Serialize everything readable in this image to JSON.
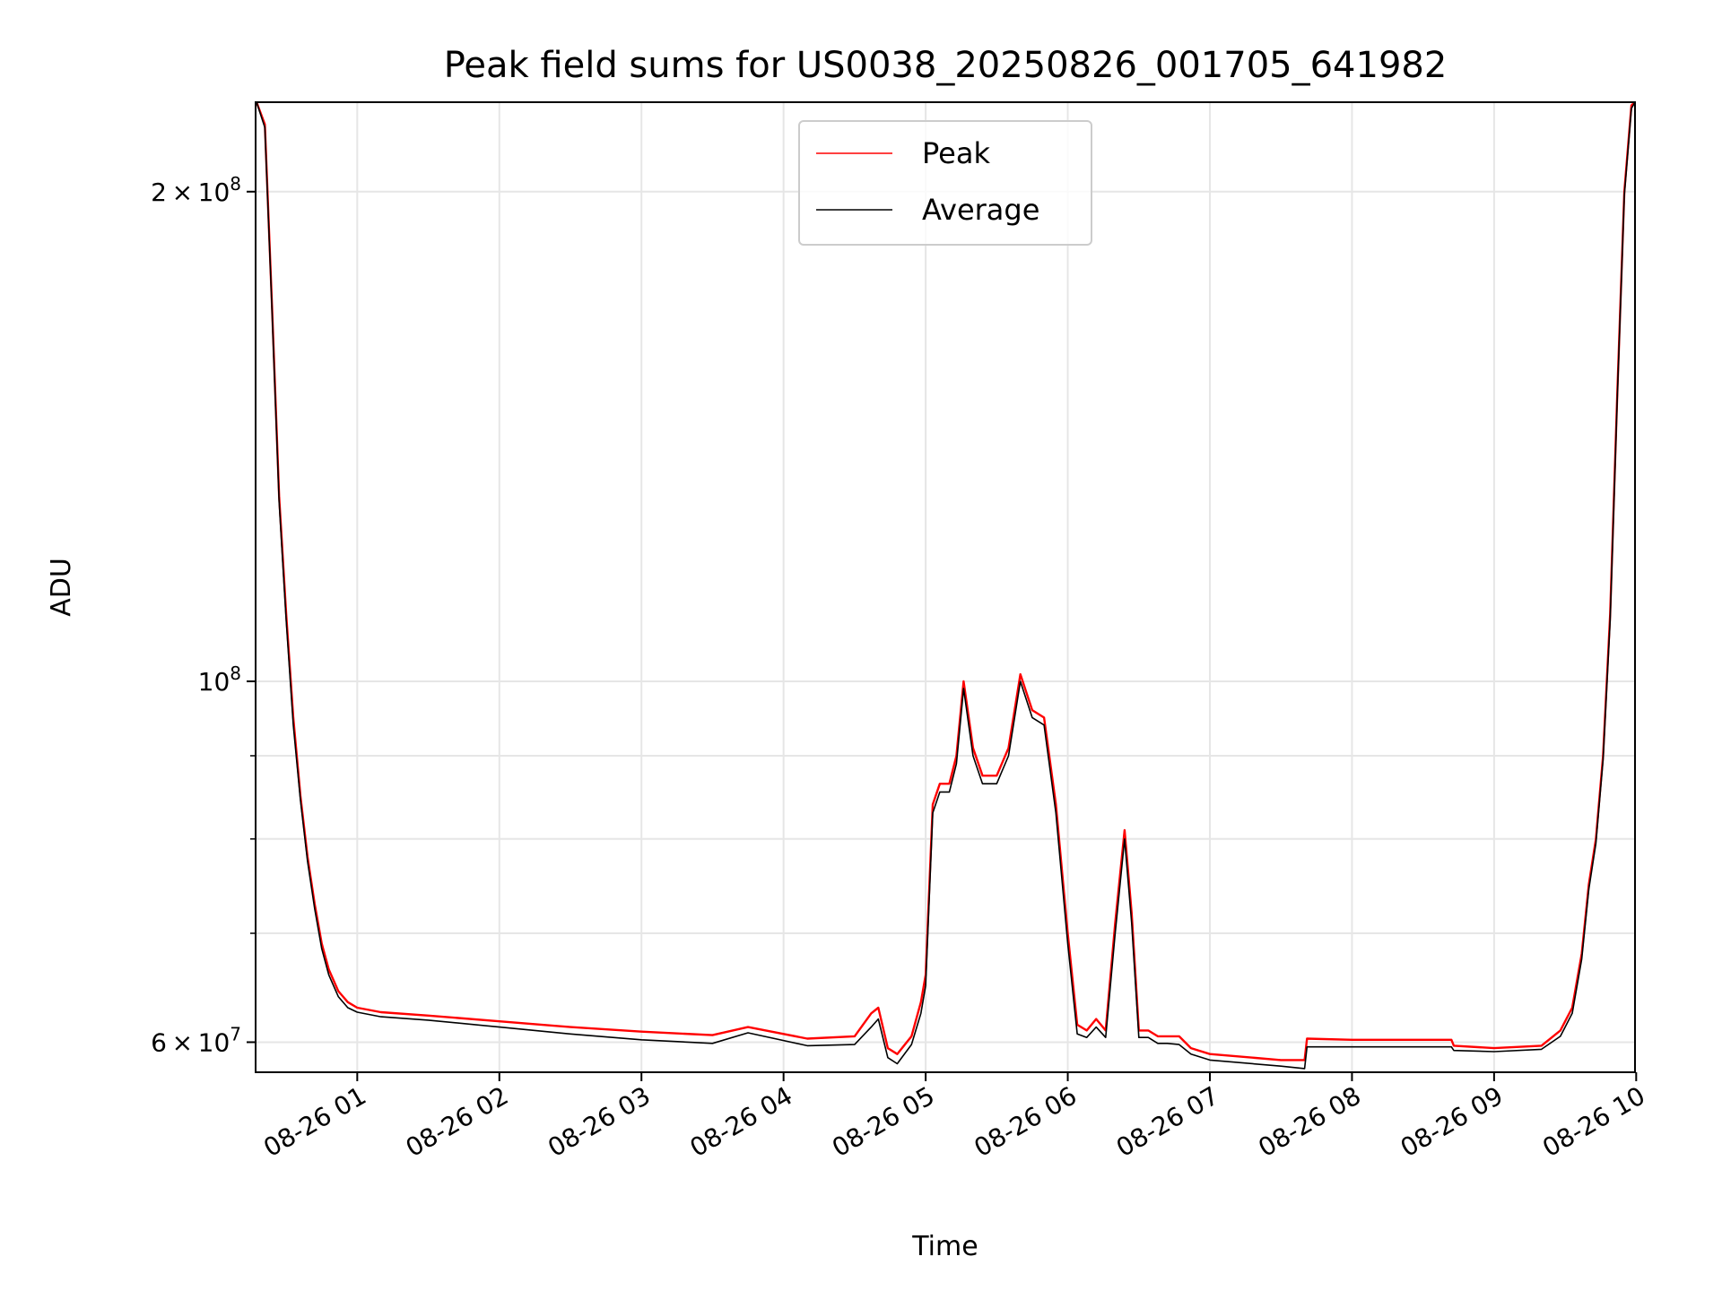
{
  "chart_data": {
    "type": "line",
    "title": "Peak field sums for US0038_20250826_001705_641982",
    "xlabel": "Time",
    "ylabel": "ADU",
    "y_scale": "log",
    "ylim": [
      57500000,
      227000000
    ],
    "xlim": [
      "2025-08-26 00:17:05",
      "2025-08-26 09:59:30"
    ],
    "x_tick_labels": [
      "08-26 01",
      "08-26 02",
      "08-26 03",
      "08-26 04",
      "08-26 05",
      "08-26 06",
      "08-26 07",
      "08-26 08",
      "08-26 09",
      "08-26 10"
    ],
    "x_ticks": [
      "2025-08-26 01:00",
      "2025-08-26 02:00",
      "2025-08-26 03:00",
      "2025-08-26 04:00",
      "2025-08-26 05:00",
      "2025-08-26 06:00",
      "2025-08-26 07:00",
      "2025-08-26 08:00",
      "2025-08-26 09:00",
      "2025-08-26 10:00"
    ],
    "y_major_ticks": [
      {
        "value": 60000000,
        "mantissa": "6",
        "exponent": "7"
      },
      {
        "value": 100000000,
        "mantissa": "",
        "exponent": "8"
      },
      {
        "value": 200000000,
        "mantissa": "2",
        "exponent": "8"
      }
    ],
    "y_minor_ticks": [
      70000000,
      80000000,
      90000000
    ],
    "grid": true,
    "legend_position": "top-center",
    "series": [
      {
        "name": "Peak",
        "color": "#ff0000",
        "x": [
          "2025-08-26 00:17:30",
          "2025-08-26 00:21:00",
          "2025-08-26 00:24:00",
          "2025-08-26 00:27:00",
          "2025-08-26 00:30:00",
          "2025-08-26 00:33:00",
          "2025-08-26 00:36:00",
          "2025-08-26 00:39:00",
          "2025-08-26 00:42:00",
          "2025-08-26 00:45:00",
          "2025-08-26 00:48:00",
          "2025-08-26 00:52:00",
          "2025-08-26 00:56:00",
          "2025-08-26 01:00:00",
          "2025-08-26 01:10:00",
          "2025-08-26 01:30:00",
          "2025-08-26 02:00:00",
          "2025-08-26 02:30:00",
          "2025-08-26 03:00:00",
          "2025-08-26 03:30:00",
          "2025-08-26 03:45:00",
          "2025-08-26 04:10:00",
          "2025-08-26 04:30:00",
          "2025-08-26 04:37:00",
          "2025-08-26 04:40:00",
          "2025-08-26 04:44:00",
          "2025-08-26 04:48:00",
          "2025-08-26 04:54:00",
          "2025-08-26 04:58:00",
          "2025-08-26 05:00:00",
          "2025-08-26 05:03:00",
          "2025-08-26 05:06:00",
          "2025-08-26 05:10:00",
          "2025-08-26 05:13:00",
          "2025-08-26 05:16:00",
          "2025-08-26 05:20:00",
          "2025-08-26 05:24:00",
          "2025-08-26 05:30:00",
          "2025-08-26 05:35:00",
          "2025-08-26 05:40:00",
          "2025-08-26 05:45:00",
          "2025-08-26 05:50:00",
          "2025-08-26 05:55:00",
          "2025-08-26 06:00:00",
          "2025-08-26 06:04:00",
          "2025-08-26 06:08:00",
          "2025-08-26 06:12:00",
          "2025-08-26 06:16:00",
          "2025-08-26 06:20:00",
          "2025-08-26 06:24:00",
          "2025-08-26 06:27:00",
          "2025-08-26 06:30:00",
          "2025-08-26 06:34:00",
          "2025-08-26 06:38:00",
          "2025-08-26 06:42:00",
          "2025-08-26 06:47:00",
          "2025-08-26 06:52:00",
          "2025-08-26 07:00:00",
          "2025-08-26 07:30:00",
          "2025-08-26 07:40:00",
          "2025-08-26 07:41:00",
          "2025-08-26 08:00:00",
          "2025-08-26 08:30:00",
          "2025-08-26 08:42:00",
          "2025-08-26 08:43:00",
          "2025-08-26 09:00:00",
          "2025-08-26 09:20:00",
          "2025-08-26 09:28:00",
          "2025-08-26 09:33:00",
          "2025-08-26 09:37:00",
          "2025-08-26 09:40:00",
          "2025-08-26 09:43:00",
          "2025-08-26 09:46:00",
          "2025-08-26 09:49:00",
          "2025-08-26 09:52:00",
          "2025-08-26 09:55:00",
          "2025-08-26 09:58:00",
          "2025-08-26 09:59:30"
        ],
        "values": [
          227000000,
          220000000,
          170000000,
          130000000,
          110000000,
          95000000,
          85000000,
          78000000,
          73000000,
          69000000,
          66500000,
          64500000,
          63500000,
          63000000,
          62600000,
          62300000,
          61800000,
          61300000,
          60900000,
          60600000,
          61300000,
          60300000,
          60500000,
          62500000,
          63000000,
          59500000,
          59000000,
          60500000,
          63500000,
          66000000,
          84000000,
          86500000,
          86500000,
          90000000,
          100000000,
          91000000,
          87500000,
          87500000,
          91000000,
          101000000,
          96000000,
          95000000,
          84000000,
          70000000,
          61500000,
          61000000,
          62000000,
          61000000,
          71000000,
          81000000,
          72000000,
          61000000,
          61000000,
          60500000,
          60500000,
          60500000,
          59500000,
          59000000,
          58500000,
          58500000,
          60300000,
          60200000,
          60200000,
          60200000,
          59700000,
          59500000,
          59700000,
          61000000,
          63000000,
          68000000,
          75000000,
          80000000,
          90000000,
          110000000,
          150000000,
          200000000,
          226000000,
          227000000
        ]
      },
      {
        "name": "Average",
        "color": "#000000",
        "x": [
          "2025-08-26 00:17:30",
          "2025-08-26 00:21:00",
          "2025-08-26 00:24:00",
          "2025-08-26 00:27:00",
          "2025-08-26 00:30:00",
          "2025-08-26 00:33:00",
          "2025-08-26 00:36:00",
          "2025-08-26 00:39:00",
          "2025-08-26 00:42:00",
          "2025-08-26 00:45:00",
          "2025-08-26 00:48:00",
          "2025-08-26 00:52:00",
          "2025-08-26 00:56:00",
          "2025-08-26 01:00:00",
          "2025-08-26 01:10:00",
          "2025-08-26 01:30:00",
          "2025-08-26 02:00:00",
          "2025-08-26 02:30:00",
          "2025-08-26 03:00:00",
          "2025-08-26 03:30:00",
          "2025-08-26 03:45:00",
          "2025-08-26 04:10:00",
          "2025-08-26 04:30:00",
          "2025-08-26 04:37:00",
          "2025-08-26 04:40:00",
          "2025-08-26 04:44:00",
          "2025-08-26 04:48:00",
          "2025-08-26 04:54:00",
          "2025-08-26 04:58:00",
          "2025-08-26 05:00:00",
          "2025-08-26 05:03:00",
          "2025-08-26 05:06:00",
          "2025-08-26 05:10:00",
          "2025-08-26 05:13:00",
          "2025-08-26 05:16:00",
          "2025-08-26 05:20:00",
          "2025-08-26 05:24:00",
          "2025-08-26 05:30:00",
          "2025-08-26 05:35:00",
          "2025-08-26 05:40:00",
          "2025-08-26 05:45:00",
          "2025-08-26 05:50:00",
          "2025-08-26 05:55:00",
          "2025-08-26 06:00:00",
          "2025-08-26 06:04:00",
          "2025-08-26 06:08:00",
          "2025-08-26 06:12:00",
          "2025-08-26 06:16:00",
          "2025-08-26 06:20:00",
          "2025-08-26 06:24:00",
          "2025-08-26 06:27:00",
          "2025-08-26 06:30:00",
          "2025-08-26 06:34:00",
          "2025-08-26 06:38:00",
          "2025-08-26 06:42:00",
          "2025-08-26 06:47:00",
          "2025-08-26 06:52:00",
          "2025-08-26 07:00:00",
          "2025-08-26 07:30:00",
          "2025-08-26 07:40:00",
          "2025-08-26 07:41:00",
          "2025-08-26 08:00:00",
          "2025-08-26 08:30:00",
          "2025-08-26 08:42:00",
          "2025-08-26 08:43:00",
          "2025-08-26 09:00:00",
          "2025-08-26 09:20:00",
          "2025-08-26 09:28:00",
          "2025-08-26 09:33:00",
          "2025-08-26 09:37:00",
          "2025-08-26 09:40:00",
          "2025-08-26 09:43:00",
          "2025-08-26 09:46:00",
          "2025-08-26 09:49:00",
          "2025-08-26 09:52:00",
          "2025-08-26 09:55:00",
          "2025-08-26 09:58:00",
          "2025-08-26 09:59:30"
        ],
        "values": [
          227000000,
          219000000,
          169000000,
          129000000,
          109000000,
          94000000,
          84500000,
          77500000,
          72500000,
          68500000,
          66000000,
          64000000,
          63000000,
          62600000,
          62200000,
          61900000,
          61300000,
          60700000,
          60200000,
          59900000,
          60800000,
          59700000,
          59800000,
          61300000,
          62000000,
          58700000,
          58200000,
          59800000,
          62500000,
          65000000,
          83000000,
          85500000,
          85500000,
          89000000,
          99000000,
          90000000,
          86500000,
          86500000,
          90000000,
          100000000,
          95000000,
          94000000,
          83000000,
          69000000,
          60700000,
          60400000,
          61300000,
          60400000,
          70000000,
          80000000,
          71000000,
          60400000,
          60400000,
          59900000,
          59900000,
          59800000,
          59000000,
          58500000,
          58000000,
          57800000,
          59600000,
          59600000,
          59600000,
          59600000,
          59300000,
          59200000,
          59400000,
          60500000,
          62500000,
          67500000,
          74500000,
          79500000,
          89500000,
          109000000,
          149000000,
          199000000,
          225000000,
          227000000
        ]
      }
    ]
  }
}
